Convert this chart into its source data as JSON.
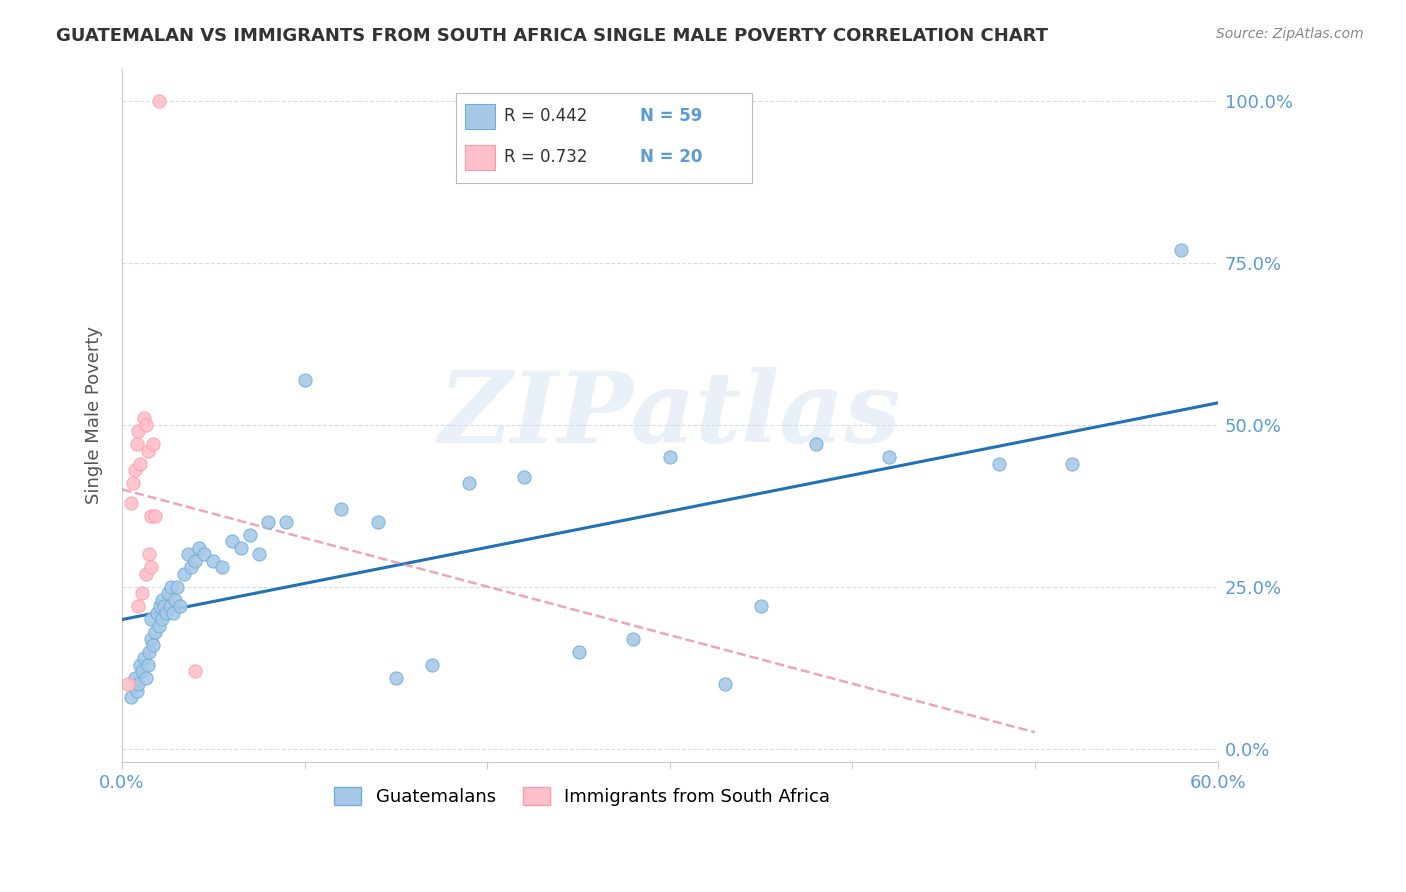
{
  "title": "GUATEMALAN VS IMMIGRANTS FROM SOUTH AFRICA SINGLE MALE POVERTY CORRELATION CHART",
  "source": "Source: ZipAtlas.com",
  "ylabel": "Single Male Poverty",
  "ytick_labels": [
    "0.0%",
    "25.0%",
    "50.0%",
    "75.0%",
    "100.0%"
  ],
  "ytick_values": [
    0,
    0.25,
    0.5,
    0.75,
    1.0
  ],
  "xlim": [
    0,
    0.6
  ],
  "ylim": [
    -0.02,
    1.05
  ],
  "blue_color": "#a8c8e8",
  "blue_edge": "#6baed6",
  "pink_color": "#ffc0cb",
  "pink_edge": "#ff9aaa",
  "regression_blue": "#2171b5",
  "regression_pink": "#e87fa0",
  "legend_R_blue": "0.442",
  "legend_N_blue": "59",
  "legend_R_pink": "0.732",
  "legend_N_pink": "20",
  "label_blue": "Guatemalans",
  "label_pink": "Immigrants from South Africa",
  "watermark_text": "ZIPatlas",
  "blue_x": [
    0.005,
    0.007,
    0.008,
    0.009,
    0.01,
    0.011,
    0.012,
    0.013,
    0.014,
    0.015,
    0.016,
    0.016,
    0.017,
    0.018,
    0.019,
    0.02,
    0.021,
    0.022,
    0.022,
    0.023,
    0.024,
    0.025,
    0.026,
    0.027,
    0.028,
    0.029,
    0.03,
    0.032,
    0.034,
    0.036,
    0.038,
    0.04,
    0.042,
    0.045,
    0.05,
    0.055,
    0.06,
    0.065,
    0.07,
    0.075,
    0.08,
    0.09,
    0.1,
    0.12,
    0.14,
    0.15,
    0.17,
    0.19,
    0.22,
    0.25,
    0.28,
    0.3,
    0.33,
    0.35,
    0.38,
    0.42,
    0.48,
    0.52,
    0.58
  ],
  "blue_y": [
    0.08,
    0.11,
    0.09,
    0.1,
    0.13,
    0.12,
    0.14,
    0.11,
    0.13,
    0.15,
    0.17,
    0.2,
    0.16,
    0.18,
    0.21,
    0.19,
    0.22,
    0.2,
    0.23,
    0.22,
    0.21,
    0.24,
    0.22,
    0.25,
    0.21,
    0.23,
    0.25,
    0.22,
    0.27,
    0.3,
    0.28,
    0.29,
    0.31,
    0.3,
    0.29,
    0.28,
    0.32,
    0.31,
    0.33,
    0.3,
    0.35,
    0.35,
    0.57,
    0.37,
    0.35,
    0.11,
    0.13,
    0.41,
    0.42,
    0.15,
    0.17,
    0.45,
    0.1,
    0.22,
    0.47,
    0.45,
    0.44,
    0.44,
    0.77
  ],
  "pink_x": [
    0.003,
    0.005,
    0.006,
    0.007,
    0.008,
    0.009,
    0.009,
    0.01,
    0.011,
    0.012,
    0.013,
    0.013,
    0.014,
    0.015,
    0.016,
    0.016,
    0.017,
    0.018,
    0.02,
    0.04
  ],
  "pink_y": [
    0.1,
    0.38,
    0.41,
    0.43,
    0.47,
    0.49,
    0.22,
    0.44,
    0.24,
    0.51,
    0.27,
    0.5,
    0.46,
    0.3,
    0.28,
    0.36,
    0.47,
    0.36,
    1.0,
    0.12
  ]
}
